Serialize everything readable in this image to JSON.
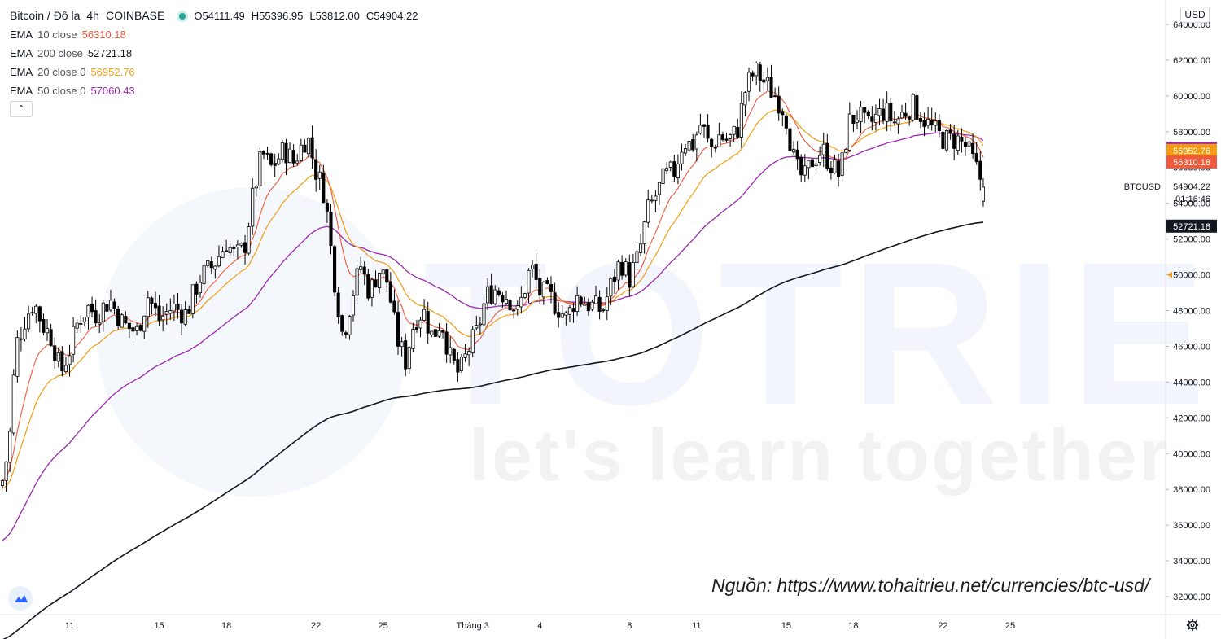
{
  "header": {
    "symbol": "Bitcoin / Đô la",
    "interval": "4h",
    "exchange": "COINBASE",
    "ohlc": [
      {
        "key": "O",
        "value": "54111.49"
      },
      {
        "key": "H",
        "value": "55396.95"
      },
      {
        "key": "L",
        "value": "53812.00"
      },
      {
        "key": "C",
        "value": "54904.22"
      }
    ]
  },
  "indicators": [
    {
      "name": "EMA",
      "params": "10 close",
      "value": "56310.18",
      "color": "#f05a3c"
    },
    {
      "name": "EMA",
      "params": "200 close",
      "value": "52721.18",
      "color": "#131722"
    },
    {
      "name": "EMA",
      "params": "20 close 0",
      "value": "56952.76",
      "color": "#f39c12"
    },
    {
      "name": "EMA",
      "params": "50 close 0",
      "value": "57060.43",
      "color": "#9c27b0"
    }
  ],
  "currency_button": "USD",
  "collapse_icon": "chevron-up-icon",
  "watermark": {
    "main": "TOTRIEU",
    "sub": "let's learn together"
  },
  "source_note": "Nguồn: https://www.tohaitrieu.net/currencies/btc-usd/",
  "price_label": {
    "ticker": "BTCUSD",
    "price": "54904.22",
    "countdown": "01:16:46"
  },
  "axis_tags": [
    {
      "value": 57060.43,
      "label": "57060.43",
      "color": "#9c27b0"
    },
    {
      "value": 56952.76,
      "label": "56952.76",
      "color": "#f39c12"
    },
    {
      "value": 56310.18,
      "label": "56310.18",
      "color": "#f05a3c"
    },
    {
      "value": 52721.18,
      "label": "52721.18",
      "color": "#131722"
    }
  ],
  "chart_data": {
    "type": "candlestick",
    "title": "Bitcoin / Đô la · 4h · COINBASE",
    "ylim": [
      31000,
      65000
    ],
    "y_ticks": [
      "32000.00",
      "34000.00",
      "36000.00",
      "38000.00",
      "40000.00",
      "42000.00",
      "44000.00",
      "46000.00",
      "48000.00",
      "50000.00",
      "52000.00",
      "54000.00",
      "56000.00",
      "58000.00",
      "60000.00",
      "62000.00",
      "64000.00"
    ],
    "x_ticks": [
      {
        "label": "11",
        "day": 11
      },
      {
        "label": "15",
        "day": 15
      },
      {
        "label": "18",
        "day": 18
      },
      {
        "label": "22",
        "day": 22
      },
      {
        "label": "25",
        "day": 25
      },
      {
        "label": "Tháng 3",
        "day": 29
      },
      {
        "label": "4",
        "day": 32
      },
      {
        "label": "8",
        "day": 36
      },
      {
        "label": "11",
        "day": 39
      },
      {
        "label": "15",
        "day": 43
      },
      {
        "label": "18",
        "day": 46
      },
      {
        "label": "22",
        "day": 50
      },
      {
        "label": "25",
        "day": 53
      }
    ],
    "day_range": [
      8.0,
      55.0
    ],
    "close_anchors": [
      [
        8.0,
        38500
      ],
      [
        8.3,
        40500
      ],
      [
        8.6,
        46000
      ],
      [
        9.0,
        47500
      ],
      [
        9.4,
        48500
      ],
      [
        9.8,
        47200
      ],
      [
        10.2,
        46500
      ],
      [
        10.6,
        44500
      ],
      [
        11.0,
        45800
      ],
      [
        11.4,
        47500
      ],
      [
        11.8,
        48200
      ],
      [
        12.2,
        47800
      ],
      [
        12.8,
        48600
      ],
      [
        13.4,
        47200
      ],
      [
        14.0,
        46800
      ],
      [
        14.5,
        48800
      ],
      [
        15.0,
        47500
      ],
      [
        15.6,
        48200
      ],
      [
        16.2,
        47800
      ],
      [
        16.8,
        49800
      ],
      [
        17.4,
        50500
      ],
      [
        18.0,
        51800
      ],
      [
        18.4,
        51000
      ],
      [
        18.8,
        51500
      ],
      [
        19.2,
        54500
      ],
      [
        19.6,
        56800
      ],
      [
        20.0,
        56000
      ],
      [
        20.6,
        57000
      ],
      [
        21.0,
        56300
      ],
      [
        21.6,
        57800
      ],
      [
        22.0,
        55800
      ],
      [
        22.4,
        54500
      ],
      [
        22.8,
        50000
      ],
      [
        23.2,
        46500
      ],
      [
        23.6,
        48800
      ],
      [
        24.0,
        50500
      ],
      [
        24.4,
        49000
      ],
      [
        24.8,
        50300
      ],
      [
        25.2,
        49600
      ],
      [
        25.6,
        46500
      ],
      [
        26.0,
        45200
      ],
      [
        26.4,
        47500
      ],
      [
        26.8,
        48000
      ],
      [
        27.2,
        46500
      ],
      [
        27.6,
        47500
      ],
      [
        28.0,
        45300
      ],
      [
        28.4,
        44400
      ],
      [
        28.8,
        45800
      ],
      [
        29.2,
        46800
      ],
      [
        29.6,
        48800
      ],
      [
        30.0,
        49200
      ],
      [
        30.6,
        48800
      ],
      [
        31.0,
        47800
      ],
      [
        31.6,
        50500
      ],
      [
        32.0,
        49000
      ],
      [
        32.4,
        48800
      ],
      [
        32.8,
        48200
      ],
      [
        33.2,
        47500
      ],
      [
        33.6,
        48800
      ],
      [
        34.0,
        48500
      ],
      [
        34.4,
        48200
      ],
      [
        34.8,
        48000
      ],
      [
        35.2,
        49500
      ],
      [
        35.6,
        50800
      ],
      [
        36.0,
        49800
      ],
      [
        36.4,
        51000
      ],
      [
        36.8,
        53500
      ],
      [
        37.2,
        54500
      ],
      [
        37.6,
        55500
      ],
      [
        38.0,
        55800
      ],
      [
        38.4,
        57500
      ],
      [
        38.8,
        57200
      ],
      [
        39.2,
        58500
      ],
      [
        39.6,
        57000
      ],
      [
        40.0,
        57800
      ],
      [
        40.4,
        57500
      ],
      [
        40.8,
        58000
      ],
      [
        41.2,
        60500
      ],
      [
        41.6,
        61400
      ],
      [
        42.0,
        60800
      ],
      [
        42.4,
        60200
      ],
      [
        42.8,
        59500
      ],
      [
        43.0,
        58800
      ],
      [
        43.4,
        56000
      ],
      [
        43.8,
        55300
      ],
      [
        44.2,
        56500
      ],
      [
        44.6,
        57000
      ],
      [
        45.0,
        56200
      ],
      [
        45.4,
        55500
      ],
      [
        45.8,
        58500
      ],
      [
        46.2,
        59000
      ],
      [
        46.6,
        58200
      ],
      [
        47.0,
        58800
      ],
      [
        47.4,
        59200
      ],
      [
        47.8,
        58500
      ],
      [
        48.2,
        59000
      ],
      [
        48.6,
        59500
      ],
      [
        49.0,
        59000
      ],
      [
        49.4,
        58300
      ],
      [
        49.8,
        57800
      ],
      [
        50.2,
        57500
      ],
      [
        50.6,
        57600
      ],
      [
        51.0,
        57200
      ],
      [
        51.4,
        56200
      ],
      [
        51.8,
        55000
      ]
    ],
    "last_candle": {
      "open": 54111.49,
      "high": 55396.95,
      "low": 53812.0,
      "close": 54904.22
    },
    "candle_colors": {
      "up": "#ffffff",
      "down": "#000000",
      "wick": "#000000"
    }
  }
}
